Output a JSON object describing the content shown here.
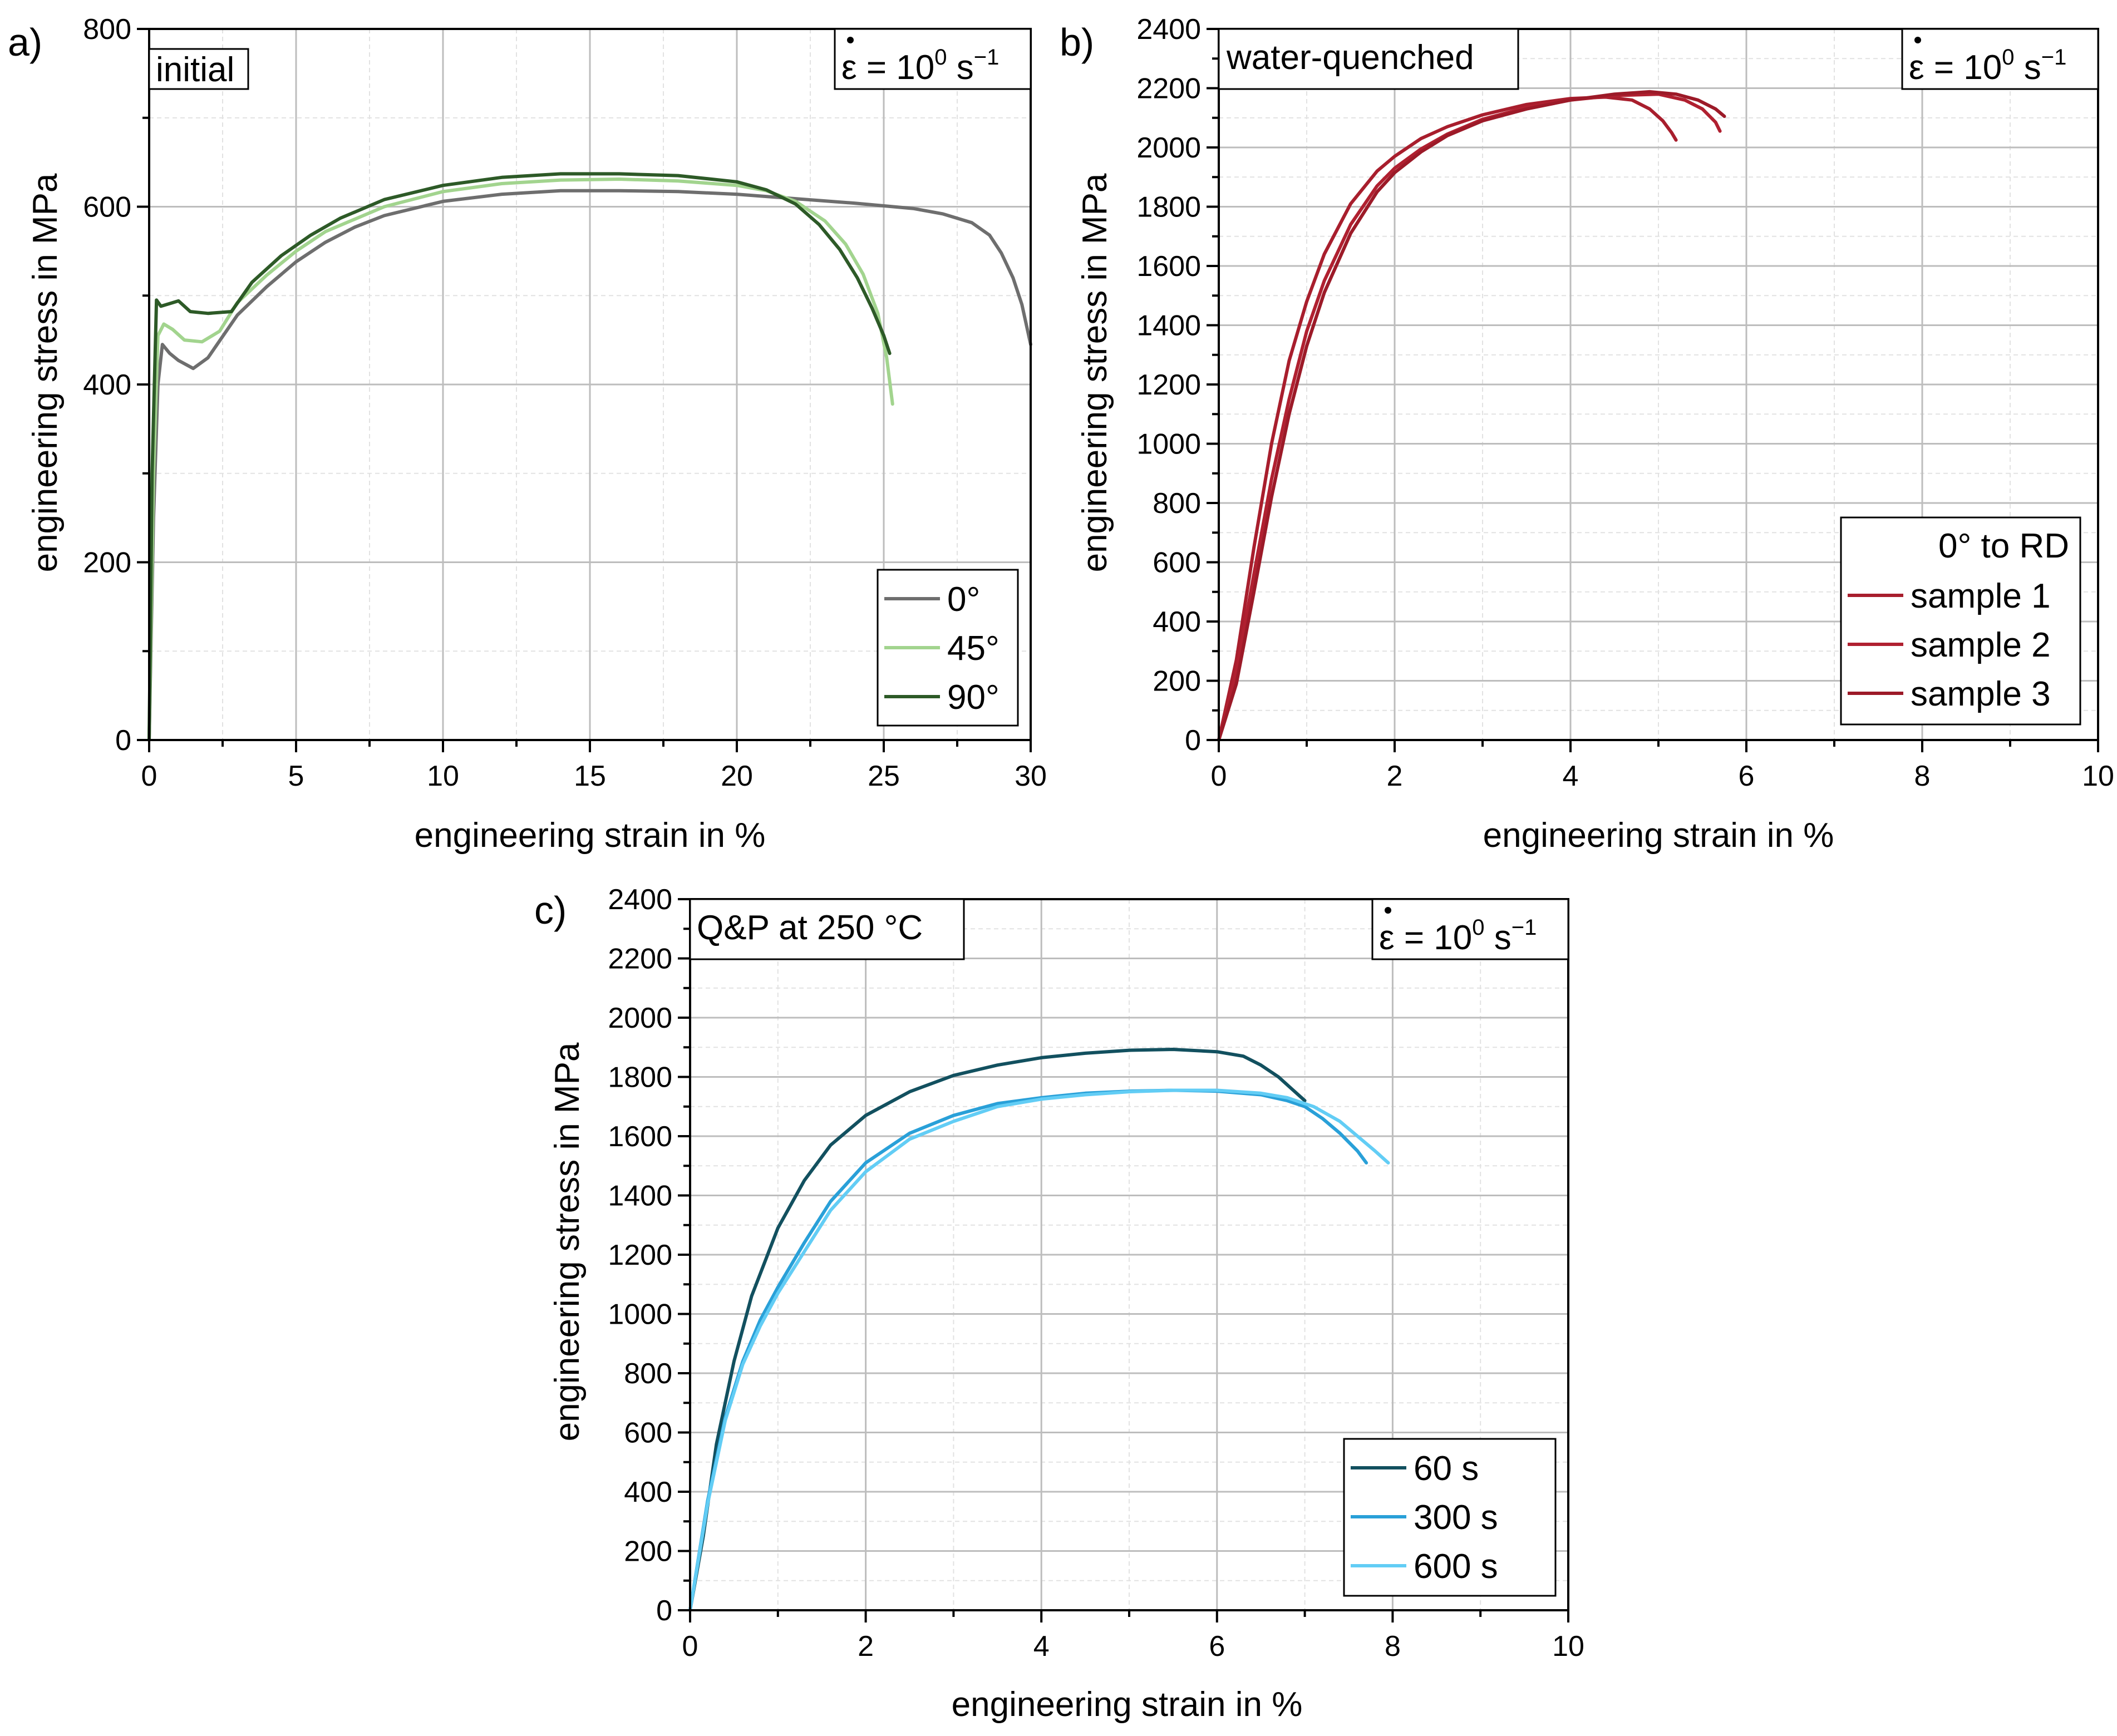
{
  "chart_data": [
    {
      "type": "line",
      "panel_label": "a)",
      "title": "initial",
      "rate_label": {
        "eps": "ε",
        "eq": " = 10",
        "exp": "0",
        "unit": " s",
        "unit_exp": "−1"
      },
      "xlabel": "engineering strain in %",
      "ylabel": "engineering stress in MPa",
      "xlim": [
        0,
        30
      ],
      "ylim": [
        0,
        800
      ],
      "xticks": [
        0,
        5,
        10,
        15,
        20,
        25,
        30
      ],
      "yticks": [
        0,
        200,
        400,
        600,
        800
      ],
      "xminor": 2.5,
      "yminor": 100,
      "grid": true,
      "legend_position": "bottom-right",
      "legend_title": "",
      "series": [
        {
          "name": "0°",
          "color": "#6e6e6e",
          "x": [
            0,
            0.15,
            0.3,
            0.45,
            0.7,
            1.0,
            1.5,
            2.0,
            3.0,
            4.0,
            5.0,
            6.0,
            7.0,
            8.0,
            10.0,
            12.0,
            14.0,
            16.0,
            18.0,
            20.0,
            22.0,
            24.0,
            26.0,
            27.0,
            28.0,
            28.6,
            29.0,
            29.4,
            29.7,
            30.0
          ],
          "y": [
            0,
            250,
            400,
            445,
            435,
            427,
            418,
            430,
            478,
            510,
            538,
            560,
            577,
            590,
            606,
            614,
            618,
            618,
            617,
            614,
            609,
            604,
            598,
            592,
            582,
            568,
            548,
            520,
            490,
            445
          ]
        },
        {
          "name": "45°",
          "color": "#a2d48e",
          "x": [
            0,
            0.15,
            0.3,
            0.5,
            0.8,
            1.2,
            1.8,
            2.4,
            3.0,
            4.0,
            5.0,
            6.0,
            8.0,
            10.0,
            12.0,
            14.0,
            16.0,
            18.0,
            20.0,
            21.0,
            22.0,
            23.0,
            23.7,
            24.3,
            24.8,
            25.1,
            25.3
          ],
          "y": [
            0,
            300,
            455,
            468,
            462,
            450,
            448,
            460,
            492,
            523,
            550,
            572,
            600,
            617,
            626,
            630,
            631,
            629,
            624,
            618,
            606,
            584,
            558,
            524,
            480,
            430,
            378
          ]
        },
        {
          "name": "90°",
          "color": "#2d5a27",
          "x": [
            0,
            0.1,
            0.25,
            0.4,
            0.8,
            1.0,
            1.4,
            2.0,
            2.8,
            3.5,
            4.5,
            5.5,
            6.5,
            8.0,
            10.0,
            12.0,
            14.0,
            16.0,
            18.0,
            20.0,
            21.0,
            22.0,
            22.8,
            23.5,
            24.1,
            24.6,
            25.0,
            25.2
          ],
          "y": [
            0,
            300,
            495,
            488,
            492,
            494,
            482,
            480,
            482,
            515,
            545,
            568,
            587,
            608,
            624,
            633,
            637,
            637,
            635,
            628,
            619,
            603,
            580,
            552,
            520,
            486,
            455,
            435
          ]
        }
      ]
    },
    {
      "type": "line",
      "panel_label": "b)",
      "title": "water-quenched",
      "rate_label": {
        "eps": "ε",
        "eq": " = 10",
        "exp": "0",
        "unit": " s",
        "unit_exp": "−1"
      },
      "xlabel": "engineering strain in %",
      "ylabel": "engineering stress in MPa",
      "xlim": [
        0,
        10
      ],
      "ylim": [
        0,
        2400
      ],
      "xticks": [
        0,
        2,
        4,
        6,
        8,
        10
      ],
      "yticks": [
        0,
        200,
        400,
        600,
        800,
        1000,
        1200,
        1400,
        1600,
        1800,
        2000,
        2200,
        2400
      ],
      "xminor": 1,
      "yminor": 100,
      "grid": true,
      "legend_position": "bottom-right",
      "legend_title": "0° to RD",
      "series": [
        {
          "name": "sample 1",
          "color": "#a81e2d",
          "x": [
            0,
            0.2,
            0.4,
            0.6,
            0.8,
            1.0,
            1.2,
            1.5,
            1.8,
            2.0,
            2.3,
            2.6,
            3.0,
            3.5,
            4.0,
            4.4,
            4.7,
            4.9,
            5.05,
            5.15,
            5.2
          ],
          "y": [
            0,
            270,
            650,
            1000,
            1280,
            1480,
            1640,
            1810,
            1920,
            1970,
            2030,
            2070,
            2110,
            2145,
            2165,
            2170,
            2160,
            2130,
            2090,
            2050,
            2025
          ]
        },
        {
          "name": "sample 2",
          "color": "#b02030",
          "x": [
            0,
            0.2,
            0.4,
            0.6,
            0.8,
            1.0,
            1.2,
            1.5,
            1.8,
            2.0,
            2.3,
            2.6,
            3.0,
            3.5,
            4.0,
            4.5,
            5.0,
            5.3,
            5.5,
            5.65,
            5.7
          ],
          "y": [
            0,
            230,
            560,
            880,
            1150,
            1380,
            1550,
            1740,
            1870,
            1930,
            1995,
            2045,
            2095,
            2135,
            2160,
            2175,
            2180,
            2160,
            2130,
            2085,
            2055
          ]
        },
        {
          "name": "sample 3",
          "color": "#9c1a28",
          "x": [
            0,
            0.2,
            0.4,
            0.6,
            0.8,
            1.0,
            1.2,
            1.5,
            1.8,
            2.0,
            2.3,
            2.6,
            3.0,
            3.5,
            4.0,
            4.5,
            4.9,
            5.2,
            5.45,
            5.65,
            5.75
          ],
          "y": [
            0,
            190,
            500,
            820,
            1100,
            1330,
            1510,
            1710,
            1850,
            1915,
            1985,
            2040,
            2090,
            2130,
            2160,
            2180,
            2188,
            2180,
            2160,
            2130,
            2105
          ]
        }
      ]
    },
    {
      "type": "line",
      "panel_label": "c)",
      "title": "Q&P at 250 °C",
      "rate_label": {
        "eps": "ε",
        "eq": " = 10",
        "exp": "0",
        "unit": " s",
        "unit_exp": "−1"
      },
      "xlabel": "engineering strain in %",
      "ylabel": "engineering stress in MPa",
      "xlim": [
        0,
        10
      ],
      "ylim": [
        0,
        2400
      ],
      "xticks": [
        0,
        2,
        4,
        6,
        8,
        10
      ],
      "yticks": [
        0,
        200,
        400,
        600,
        800,
        1000,
        1200,
        1400,
        1600,
        1800,
        2000,
        2200,
        2400
      ],
      "xminor": 1,
      "yminor": 100,
      "grid": true,
      "legend_position": "bottom-right",
      "legend_title": "",
      "series": [
        {
          "name": "60 s",
          "color": "#12505f",
          "x": [
            0,
            0.15,
            0.3,
            0.5,
            0.7,
            1.0,
            1.3,
            1.6,
            2.0,
            2.5,
            3.0,
            3.5,
            4.0,
            4.5,
            5.0,
            5.5,
            6.0,
            6.3,
            6.5,
            6.7,
            6.85,
            7.0
          ],
          "y": [
            0,
            250,
            560,
            840,
            1060,
            1290,
            1450,
            1570,
            1670,
            1750,
            1805,
            1840,
            1865,
            1880,
            1890,
            1893,
            1885,
            1870,
            1840,
            1800,
            1760,
            1720
          ]
        },
        {
          "name": "300 s",
          "color": "#29a0d8",
          "x": [
            0,
            0.2,
            0.4,
            0.6,
            0.8,
            1.0,
            1.3,
            1.6,
            2.0,
            2.5,
            3.0,
            3.5,
            4.0,
            4.5,
            5.0,
            5.5,
            6.0,
            6.5,
            6.8,
            7.0,
            7.2,
            7.4,
            7.6,
            7.7
          ],
          "y": [
            0,
            370,
            650,
            840,
            980,
            1090,
            1240,
            1380,
            1510,
            1610,
            1670,
            1710,
            1730,
            1745,
            1752,
            1755,
            1752,
            1740,
            1720,
            1700,
            1660,
            1610,
            1550,
            1510
          ]
        },
        {
          "name": "600 s",
          "color": "#62cdf5",
          "x": [
            0,
            0.2,
            0.4,
            0.6,
            0.8,
            1.0,
            1.3,
            1.6,
            2.0,
            2.5,
            3.0,
            3.5,
            4.0,
            4.5,
            5.0,
            5.5,
            6.0,
            6.5,
            6.8,
            7.1,
            7.4,
            7.6,
            7.8,
            7.95
          ],
          "y": [
            0,
            360,
            640,
            830,
            960,
            1070,
            1210,
            1350,
            1480,
            1590,
            1650,
            1700,
            1725,
            1740,
            1750,
            1755,
            1755,
            1745,
            1730,
            1700,
            1650,
            1600,
            1550,
            1510
          ]
        }
      ]
    }
  ]
}
